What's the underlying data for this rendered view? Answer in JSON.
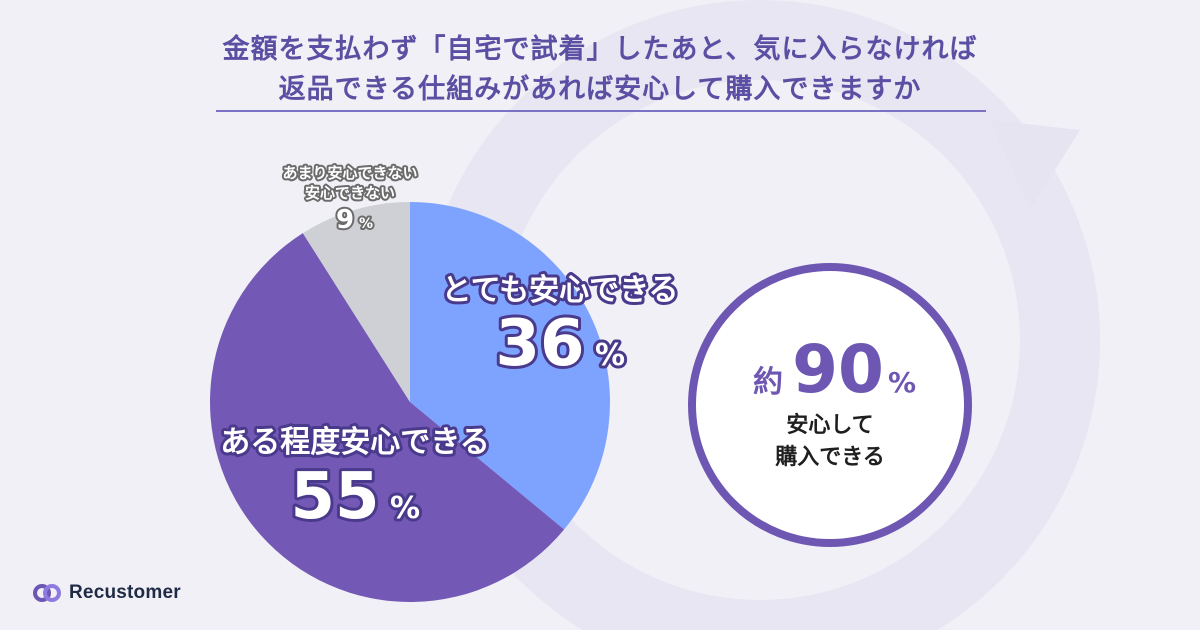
{
  "title_line1": "金額を支払わず「自宅で試着」したあと、気に入らなければ",
  "title_line2": "返品できる仕組みがあれば安心して購入できますか",
  "chart_data": {
    "type": "pie",
    "slices": [
      {
        "name": "とても安心できる",
        "value": 36,
        "label": "36",
        "color": "#7ea3ff"
      },
      {
        "name": "ある程度安心できる",
        "value": 55,
        "label": "55",
        "color": "#7359b5"
      },
      {
        "name": "あまり安心できない 安心できない",
        "name_line1": "あまり安心できない",
        "name_line2": "安心できない",
        "value": 9,
        "label": "9",
        "color": "#cfcfd6"
      }
    ],
    "percent_symbol": "%"
  },
  "badge": {
    "prefix": "約",
    "value": "90",
    "unit": "%",
    "line1": "安心して",
    "line2": "購入できる"
  },
  "brand": {
    "name": "Recustomer",
    "accent": "#6e57b3"
  }
}
